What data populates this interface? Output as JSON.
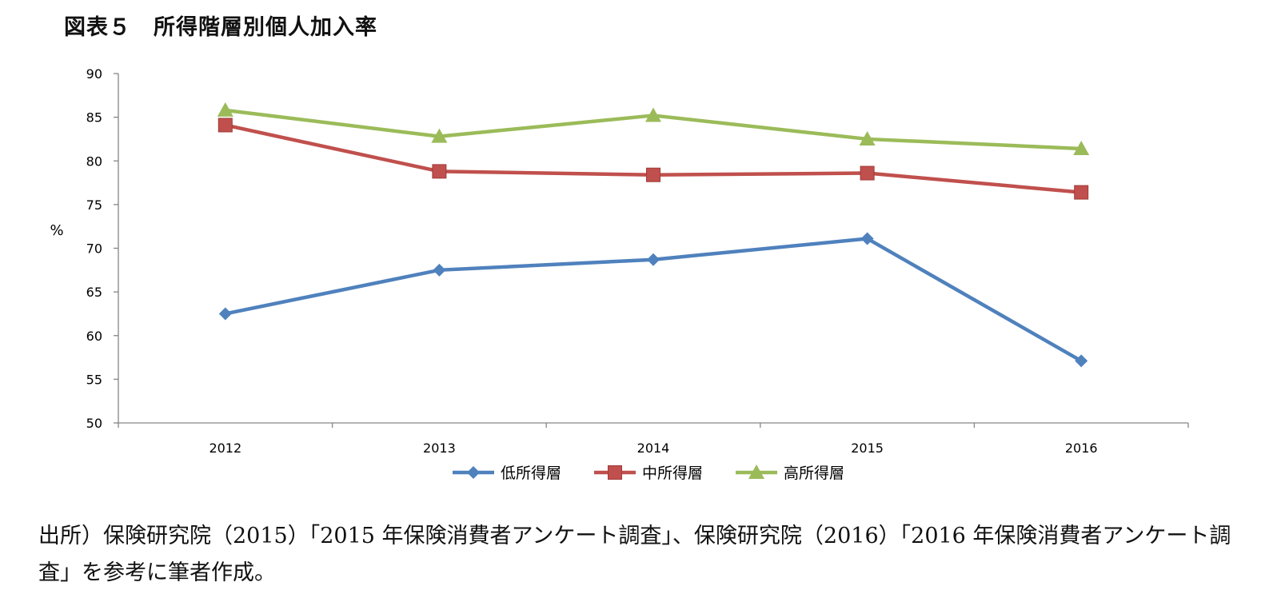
{
  "figure_title": "図表５　所得階層別個人加入率",
  "chart_data": {
    "type": "line",
    "title": "図表５　所得階層別個人加入率",
    "xlabel": "",
    "ylabel": "%",
    "categories": [
      "2012",
      "2013",
      "2014",
      "2015",
      "2016"
    ],
    "ylim": [
      50,
      90
    ],
    "yticks": [
      50,
      55,
      60,
      65,
      70,
      75,
      80,
      85,
      90
    ],
    "grid": false,
    "legend_position": "bottom",
    "series": [
      {
        "name": "低所得層",
        "color": "#4F81BD",
        "marker": "diamond",
        "values": [
          62.5,
          67.5,
          68.7,
          71.1,
          57.1
        ]
      },
      {
        "name": "中所得層",
        "color": "#C0504D",
        "marker": "square",
        "values": [
          84.1,
          78.8,
          78.4,
          78.6,
          76.4
        ]
      },
      {
        "name": "高所得層",
        "color": "#9BBB59",
        "marker": "triangle",
        "values": [
          85.8,
          82.8,
          85.2,
          82.5,
          81.4
        ]
      }
    ]
  },
  "source_note": "出所）保険研究院（2015）「2015 年保険消費者アンケート調査」、保険研究院（2016）「2016 年保険消費者アンケート調査」を参考に筆者作成。"
}
